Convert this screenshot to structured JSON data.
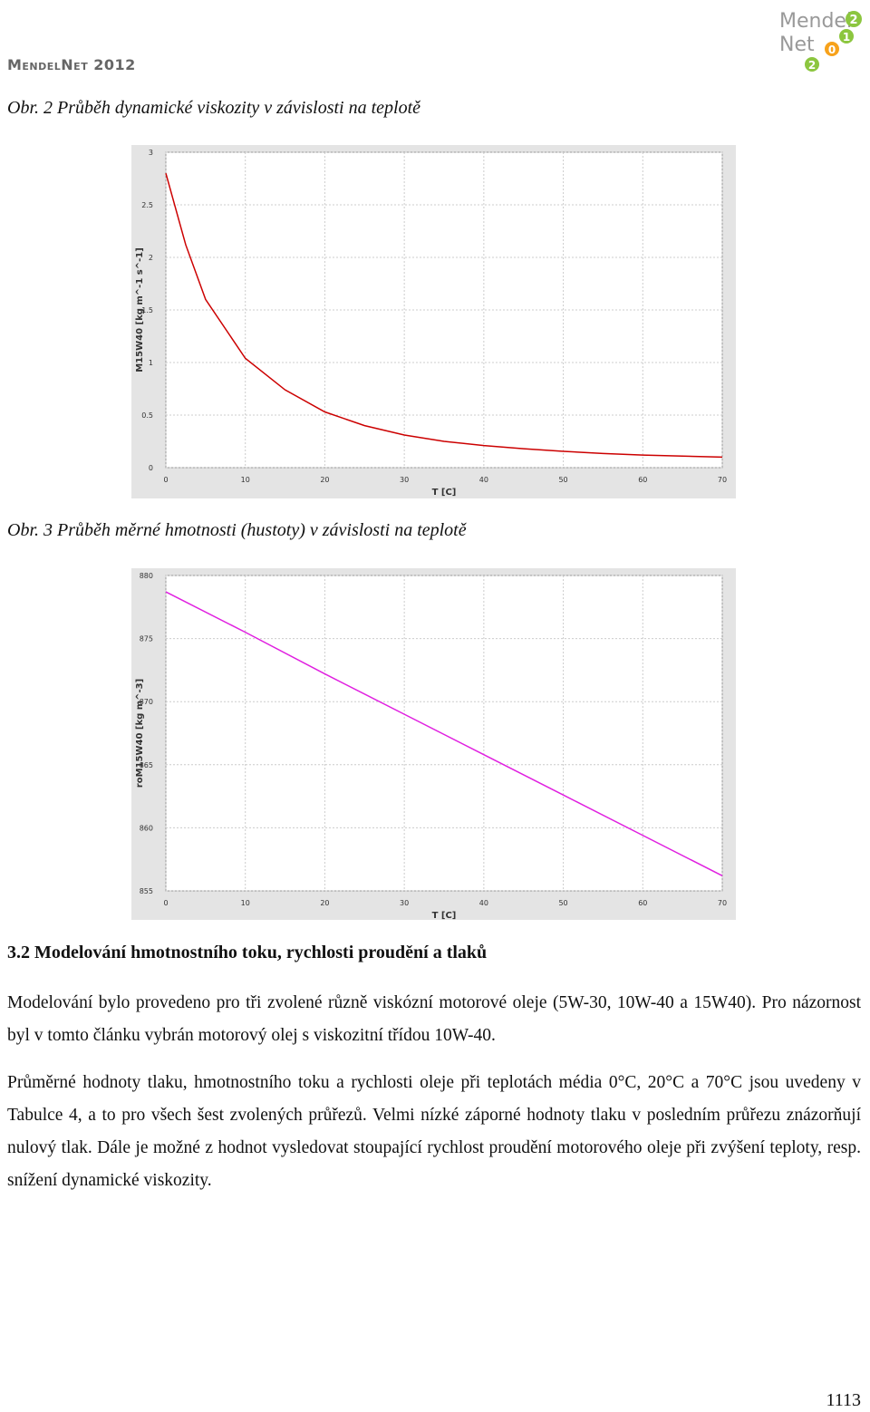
{
  "header": {
    "title": "MendelNet 2012",
    "logo_lines": [
      "Mendel",
      "Net"
    ],
    "logo_badges": [
      "2",
      "0",
      "1",
      "2"
    ]
  },
  "captions": [
    "Obr. 2 Průběh dynamické viskozity v závislosti na teplotě",
    "Obr. 3 Průběh měrné hmotnosti (hustoty) v závislosti na teplotě"
  ],
  "chart_data": [
    {
      "type": "line",
      "x_label": "T [C]",
      "y_label": "M15W40 [kg m^-1 s^-1]",
      "x": [
        0,
        2.5,
        5,
        10,
        15,
        20,
        25,
        30,
        35,
        40,
        45,
        50,
        55,
        60,
        65,
        70
      ],
      "series": [
        {
          "color": "#cc0000",
          "values": [
            2.8,
            2.12,
            1.6,
            1.04,
            0.74,
            0.53,
            0.4,
            0.31,
            0.25,
            0.21,
            0.18,
            0.155,
            0.135,
            0.12,
            0.11,
            0.1
          ]
        }
      ],
      "xlim": [
        0,
        70
      ],
      "xticks": [
        0,
        10,
        20,
        30,
        40,
        50,
        60,
        70
      ],
      "ylim": [
        0,
        3
      ],
      "yticks": [
        0,
        0.5,
        1,
        1.5,
        2,
        2.5,
        3
      ],
      "grid": true
    },
    {
      "type": "line",
      "x_label": "T [C]",
      "y_label": "roM15W40 [kg m^-3]",
      "x": [
        0,
        10,
        20,
        30,
        40,
        50,
        60,
        70
      ],
      "series": [
        {
          "color": "#e020e0",
          "values": [
            878.7,
            875.5,
            872.2,
            869.0,
            865.8,
            862.6,
            859.4,
            856.2
          ]
        }
      ],
      "xlim": [
        0,
        70
      ],
      "xticks": [
        0,
        10,
        20,
        30,
        40,
        50,
        60,
        70
      ],
      "ylim": [
        855,
        880
      ],
      "yticks": [
        855,
        860,
        865,
        870,
        875,
        880
      ],
      "grid": true
    }
  ],
  "section": {
    "heading": "3.2 Modelování hmotnostního toku, rychlosti proudění a tlaků",
    "paragraphs": [
      "Modelování bylo provedeno pro tři zvolené různě viskózní motorové oleje (5W-30, 10W-40 a 15W40). Pro názornost byl v tomto článku vybrán motorový olej s viskozitní třídou 10W-40.",
      "Průměrné hodnoty tlaku, hmotnostního toku a rychlosti oleje při teplotách média 0°C, 20°C a 70°C jsou uvedeny v Tabulce 4, a to pro všech šest zvolených průřezů. Velmi nízké záporné hodnoty tlaku v posledním průřezu znázorňují nulový tlak. Dále je možné z hodnot vysledovat stoupající rychlost proudění motorového oleje při zvýšení teploty, resp. snížení dynamické viskozity."
    ]
  },
  "page_number": "1113"
}
